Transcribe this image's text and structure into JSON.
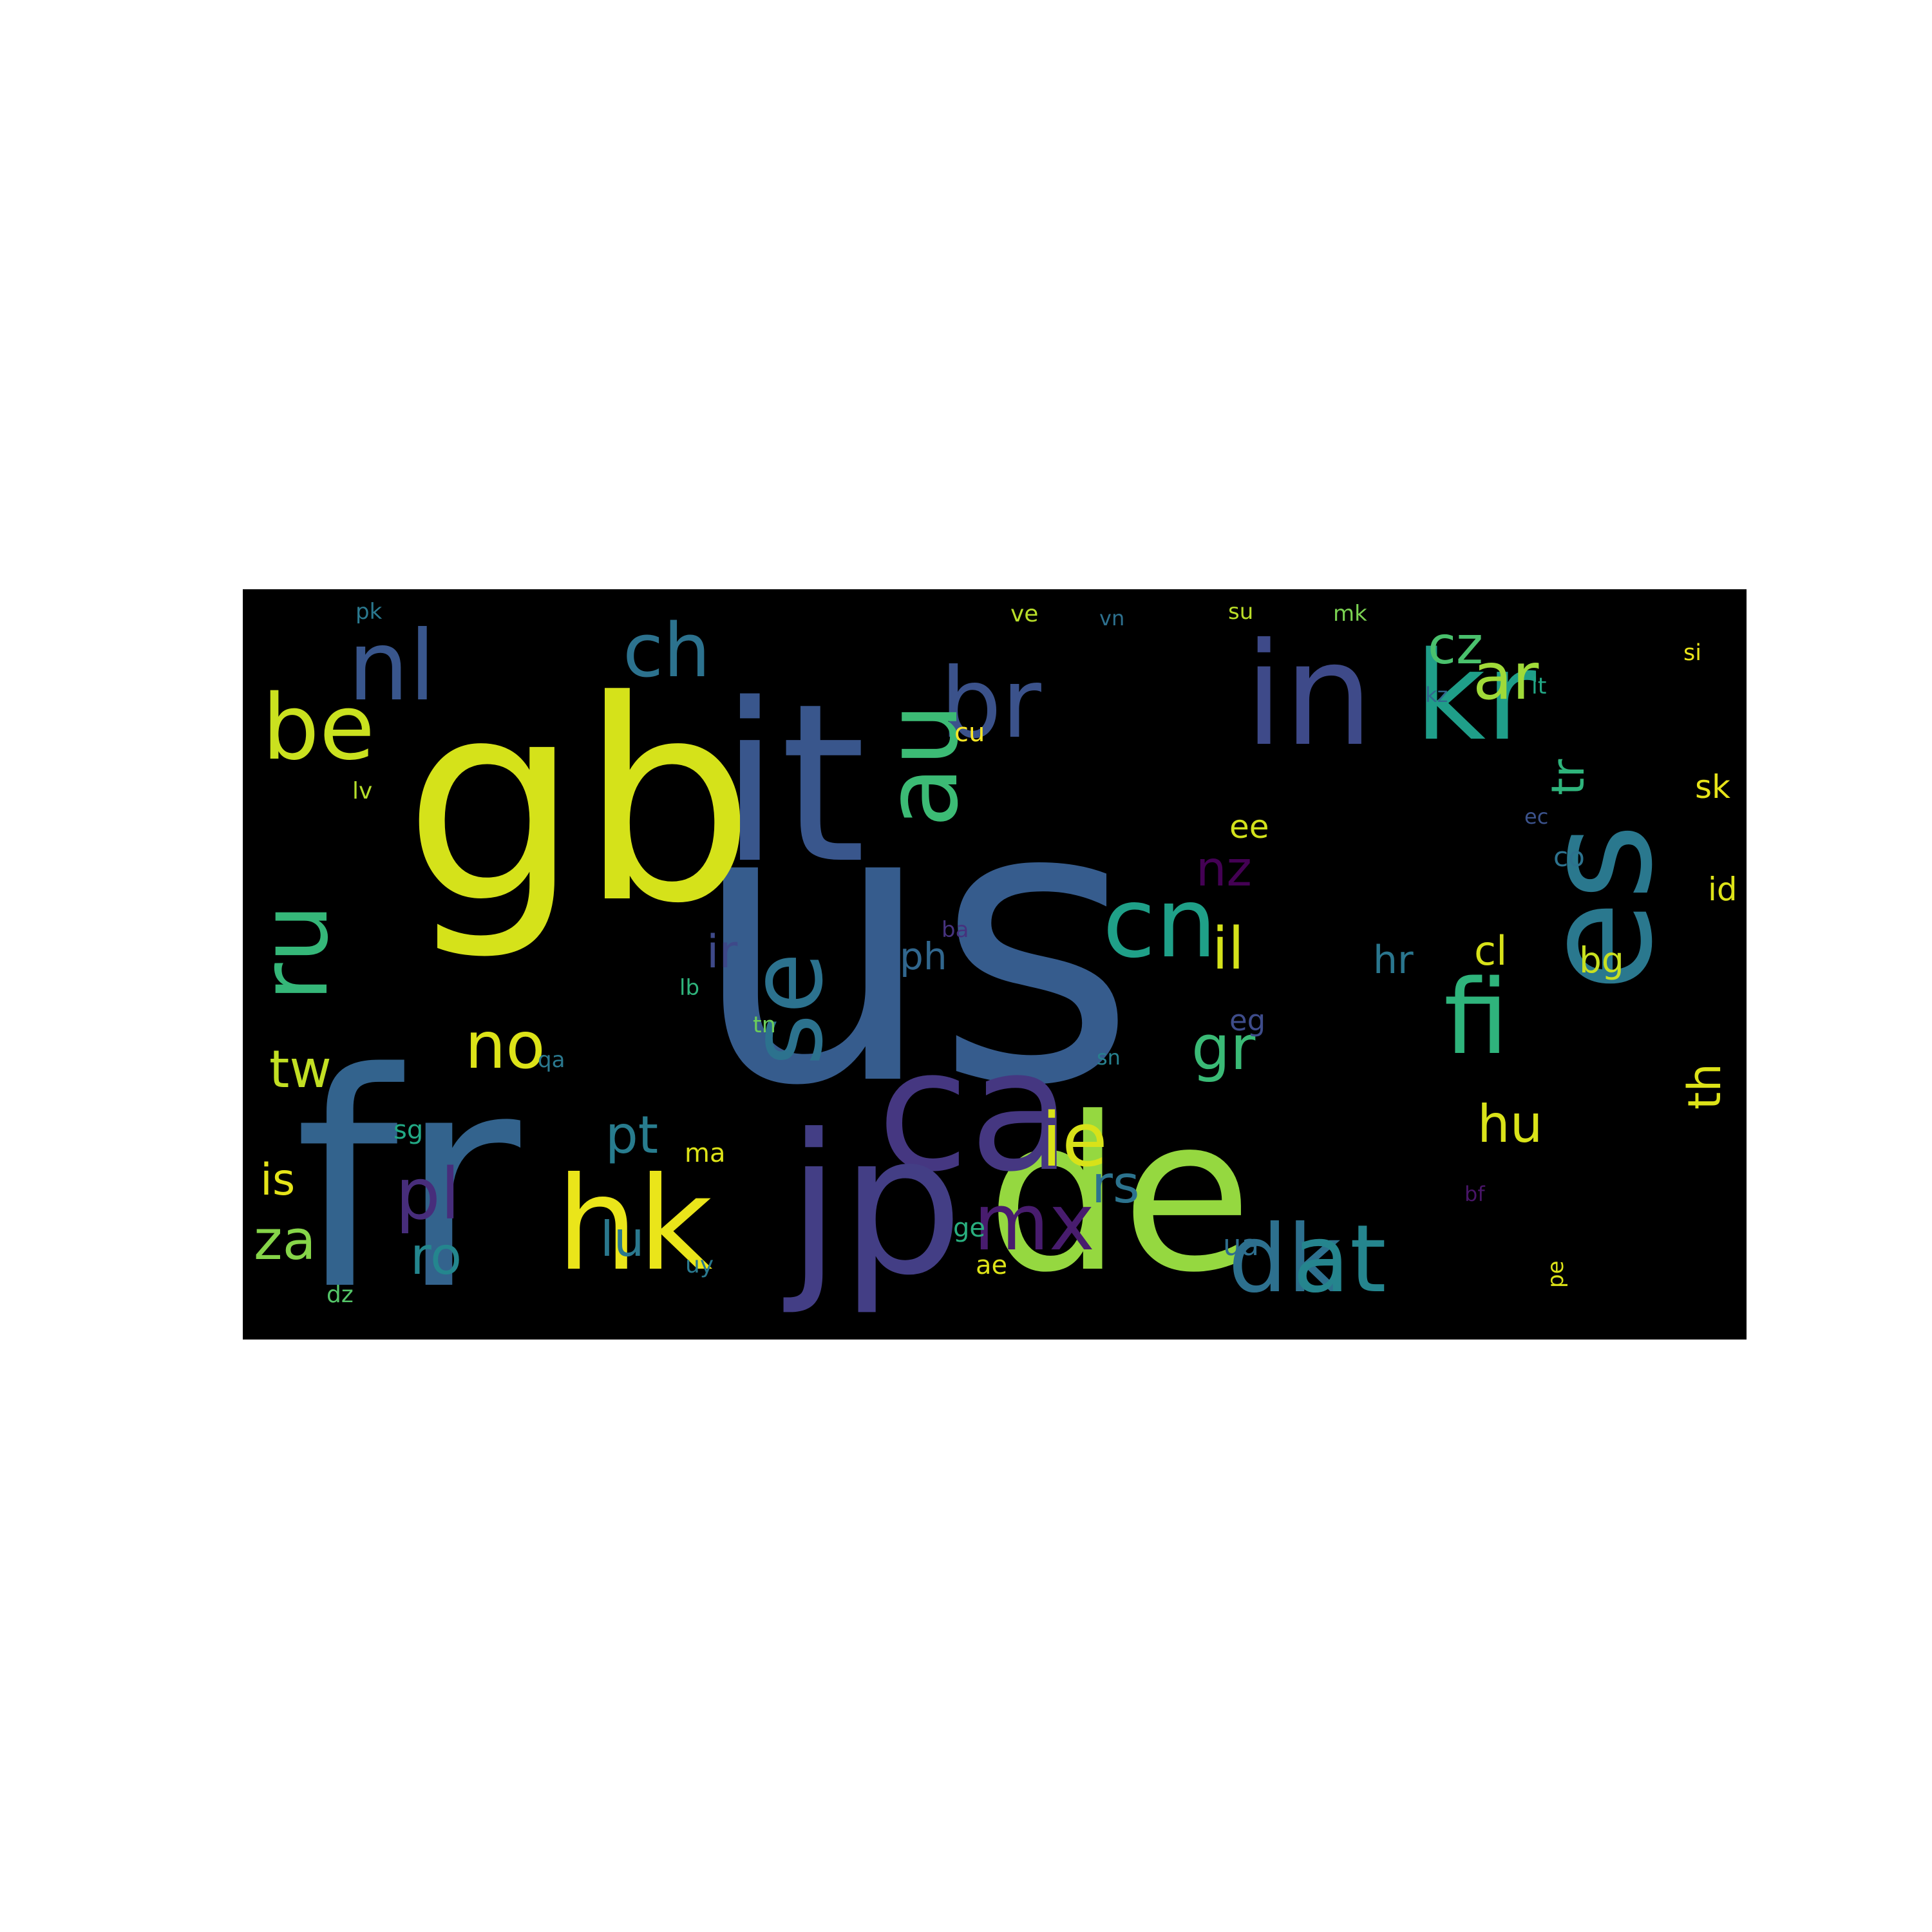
{
  "wordcloud": {
    "background": "#000000",
    "page_background": "#ffffff",
    "palette": "viridis",
    "words": [
      {
        "text": "us",
        "color": "#365c8d",
        "rotate": 0
      },
      {
        "text": "gb",
        "color": "#d5e21a",
        "rotate": 0
      },
      {
        "text": "fr",
        "color": "#33638d",
        "rotate": 0
      },
      {
        "text": "it",
        "color": "#39568c",
        "rotate": 0
      },
      {
        "text": "de",
        "color": "#95d840",
        "rotate": 0
      },
      {
        "text": "ca",
        "color": "#453781",
        "rotate": 0
      },
      {
        "text": "jp",
        "color": "#433e85",
        "rotate": 0
      },
      {
        "text": "es",
        "color": "#2a788e",
        "rotate": 90
      },
      {
        "text": "in",
        "color": "#3e4a89",
        "rotate": 0
      },
      {
        "text": "kr",
        "color": "#1f9e89",
        "rotate": 0
      },
      {
        "text": "br",
        "color": "#3b528b",
        "rotate": 0
      },
      {
        "text": "au",
        "color": "#3cbb75",
        "rotate": 90
      },
      {
        "text": "ru",
        "color": "#35b779",
        "rotate": 90
      },
      {
        "text": "se",
        "color": "#2c728e",
        "rotate": 90
      },
      {
        "text": "cn",
        "color": "#1fa088",
        "rotate": 0
      },
      {
        "text": "hk",
        "color": "#eae51a",
        "rotate": 0
      },
      {
        "text": "be",
        "color": "#cae11f",
        "rotate": 0
      },
      {
        "text": "nl",
        "color": "#39568c",
        "rotate": 0
      },
      {
        "text": "ch",
        "color": "#2c728e",
        "rotate": 0
      },
      {
        "text": "fi",
        "color": "#2fb47c",
        "rotate": 0
      },
      {
        "text": "dk",
        "color": "#2d708e",
        "rotate": 0
      },
      {
        "text": "at",
        "color": "#25858e",
        "rotate": 0
      },
      {
        "text": "mx",
        "color": "#481c6e",
        "rotate": 0
      },
      {
        "text": "pl",
        "color": "#472d7b",
        "rotate": 0
      },
      {
        "text": "ie",
        "color": "#d8e219",
        "rotate": 0
      },
      {
        "text": "cz",
        "color": "#4ac16d",
        "rotate": 0
      },
      {
        "text": "ar",
        "color": "#a0da39",
        "rotate": 0
      },
      {
        "text": "nz",
        "color": "#440154",
        "rotate": 0
      },
      {
        "text": "no",
        "color": "#dde318",
        "rotate": 0
      },
      {
        "text": "pt",
        "color": "#287c8e",
        "rotate": 0
      },
      {
        "text": "tr",
        "color": "#2fb47c",
        "rotate": 90
      },
      {
        "text": "gr",
        "color": "#3aba76",
        "rotate": 0
      },
      {
        "text": "il",
        "color": "#d5e21a",
        "rotate": 0
      },
      {
        "text": "ro",
        "color": "#24868e",
        "rotate": 0
      },
      {
        "text": "lu",
        "color": "#2a788e",
        "rotate": 0
      },
      {
        "text": "rs",
        "color": "#2c738e",
        "rotate": 0
      },
      {
        "text": "za",
        "color": "#86d549",
        "rotate": 0
      },
      {
        "text": "hu",
        "color": "#dae319",
        "rotate": 0
      },
      {
        "text": "th",
        "color": "#dde318",
        "rotate": 90
      },
      {
        "text": "tw",
        "color": "#c2df23",
        "rotate": 0
      },
      {
        "text": "ir",
        "color": "#3e4989",
        "rotate": 0
      },
      {
        "text": "ph",
        "color": "#31678e",
        "rotate": 0
      },
      {
        "text": "hr",
        "color": "#2a768e",
        "rotate": 0
      },
      {
        "text": "cl",
        "color": "#d8e219",
        "rotate": 0
      },
      {
        "text": "is",
        "color": "#e5e419",
        "rotate": 0
      },
      {
        "text": "ee",
        "color": "#d2e21b",
        "rotate": 0
      },
      {
        "text": "bg",
        "color": "#c8e020",
        "rotate": 0
      },
      {
        "text": "ua",
        "color": "#2e6e8e",
        "rotate": 0
      },
      {
        "text": "eg",
        "color": "#3e4c8a",
        "rotate": 0
      },
      {
        "text": "id",
        "color": "#dde318",
        "rotate": 0
      },
      {
        "text": "sk",
        "color": "#e7e419",
        "rotate": 0
      },
      {
        "text": "co",
        "color": "#2c728e",
        "rotate": 0
      },
      {
        "text": "si",
        "color": "#eae51a",
        "rotate": 0
      },
      {
        "text": "lt",
        "color": "#22a785",
        "rotate": 0
      },
      {
        "text": "kz",
        "color": "#31688e",
        "rotate": 0
      },
      {
        "text": "ec",
        "color": "#3b528b",
        "rotate": 0
      },
      {
        "text": "lv",
        "color": "#b5de2b",
        "rotate": 0
      },
      {
        "text": "pk",
        "color": "#2a788e",
        "rotate": 0
      },
      {
        "text": "ve",
        "color": "#b8de29",
        "rotate": 0
      },
      {
        "text": "vn",
        "color": "#2d708e",
        "rotate": 0
      },
      {
        "text": "su",
        "color": "#bade28",
        "rotate": 0
      },
      {
        "text": "mk",
        "color": "#7ad151",
        "rotate": 0
      },
      {
        "text": "cu",
        "color": "#fde725",
        "rotate": 0
      },
      {
        "text": "ba",
        "color": "#46327e",
        "rotate": 0
      },
      {
        "text": "lb",
        "color": "#2fb47c",
        "rotate": 0
      },
      {
        "text": "tn",
        "color": "#6ccd5a",
        "rotate": 0
      },
      {
        "text": "sn",
        "color": "#27808e",
        "rotate": 0
      },
      {
        "text": "qa",
        "color": "#2a788e",
        "rotate": 0
      },
      {
        "text": "sg",
        "color": "#22a884",
        "rotate": 0
      },
      {
        "text": "ma",
        "color": "#dde318",
        "rotate": 0
      },
      {
        "text": "bf",
        "color": "#481567",
        "rotate": 0
      },
      {
        "text": "ge",
        "color": "#29af7f",
        "rotate": 0
      },
      {
        "text": "ae",
        "color": "#dde318",
        "rotate": 0
      },
      {
        "text": "pe",
        "color": "#dde318",
        "rotate": 90
      },
      {
        "text": "uy",
        "color": "#29788e",
        "rotate": 0
      },
      {
        "text": "dz",
        "color": "#54c568",
        "rotate": 0
      }
    ]
  }
}
